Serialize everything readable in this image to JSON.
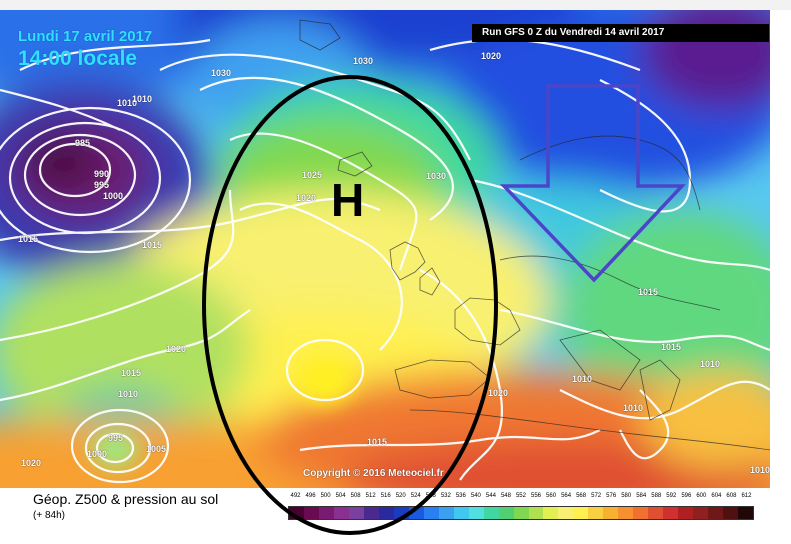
{
  "header": {
    "date": "Lundi 17 avril 2017",
    "time": "14:00 locale",
    "run": "Run GFS 0 Z du Vendredi 14 avril 2017"
  },
  "map": {
    "high_label": "H",
    "copyright": "Copyright © 2016 Meteociel.fr",
    "isobar_labels": [
      "1030",
      "1030",
      "1020",
      "1010",
      "1010",
      "985",
      "990",
      "995",
      "1000",
      "1015",
      "1015",
      "1025",
      "1020",
      "1030",
      "1020",
      "1015",
      "1010",
      "1015",
      "1020",
      "995",
      "1000",
      "1005",
      "1020",
      "1015",
      "1015",
      "1015",
      "1010",
      "1010",
      "1010",
      "1010"
    ]
  },
  "legend": {
    "title": "Géop. Z500 & pression au sol",
    "subtitle": "(+ 84h)",
    "scale": [
      "492",
      "496",
      "500",
      "504",
      "508",
      "512",
      "516",
      "520",
      "524",
      "528",
      "532",
      "536",
      "540",
      "544",
      "548",
      "552",
      "556",
      "560",
      "564",
      "568",
      "572",
      "576",
      "580",
      "584",
      "588",
      "592",
      "596",
      "600",
      "604",
      "608",
      "612"
    ],
    "colors": [
      "#4a0030",
      "#6a0a50",
      "#7a1a70",
      "#8a3090",
      "#7a40a0",
      "#4a2a90",
      "#2a2aa0",
      "#1a3ac0",
      "#1a5ae0",
      "#2a80f0",
      "#3aa0f0",
      "#40c8f0",
      "#50e0e0",
      "#40d8a0",
      "#50d070",
      "#80d850",
      "#b0e050",
      "#e0f050",
      "#f8f070",
      "#fff050",
      "#f8d040",
      "#f8b030",
      "#f89030",
      "#f07030",
      "#e05030",
      "#d03030",
      "#b02020",
      "#902020",
      "#701818",
      "#501010",
      "#200808"
    ]
  }
}
